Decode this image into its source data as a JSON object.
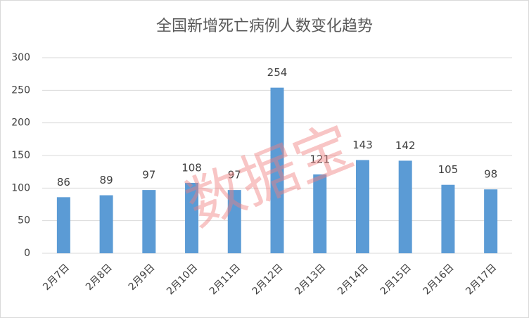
{
  "chart_data": {
    "type": "bar",
    "title": "全国新增死亡病例人数变化趋势",
    "categories": [
      "2月7日",
      "2月8日",
      "2月9日",
      "2月10日",
      "2月11日",
      "2月12日",
      "2月13日",
      "2月14日",
      "2月15日",
      "2月16日",
      "2月17日"
    ],
    "values": [
      86,
      89,
      97,
      108,
      97,
      254,
      121,
      143,
      142,
      105,
      98
    ],
    "color": "#5b9bd5",
    "ylim": [
      0,
      300
    ],
    "yticks": [
      0,
      50,
      100,
      150,
      200,
      250,
      300
    ],
    "grid": true,
    "watermark": "数据宝"
  }
}
